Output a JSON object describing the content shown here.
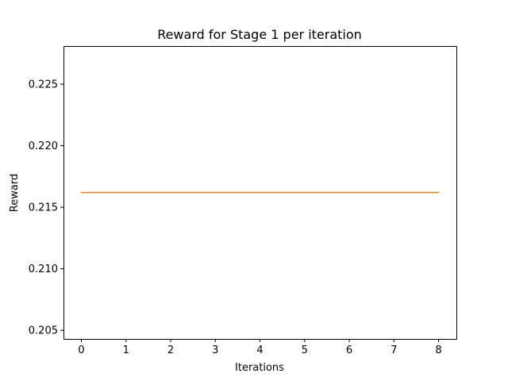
{
  "chart_data": {
    "type": "line",
    "title": "Reward for Stage 1 per iteration",
    "xlabel": "Iterations",
    "ylabel": "Reward",
    "x": [
      0,
      1,
      2,
      3,
      4,
      5,
      6,
      7,
      8
    ],
    "series": [
      {
        "values": [
          0.2162,
          0.2162,
          0.2162,
          0.2162,
          0.2162,
          0.2162,
          0.2162,
          0.2162,
          0.2162
        ],
        "color": "#ff7f0e"
      }
    ],
    "xlim": [
      -0.4,
      8.4
    ],
    "ylim": [
      0.2043,
      0.2281
    ],
    "xticks": [
      0,
      1,
      2,
      3,
      4,
      5,
      6,
      7,
      8
    ],
    "xtick_labels": [
      "0",
      "1",
      "2",
      "3",
      "4",
      "5",
      "6",
      "7",
      "8"
    ],
    "yticks": [
      0.205,
      0.21,
      0.215,
      0.22,
      0.225
    ],
    "ytick_labels": [
      "0.205",
      "0.210",
      "0.215",
      "0.220",
      "0.225"
    ],
    "grid": false,
    "legend": "none"
  }
}
